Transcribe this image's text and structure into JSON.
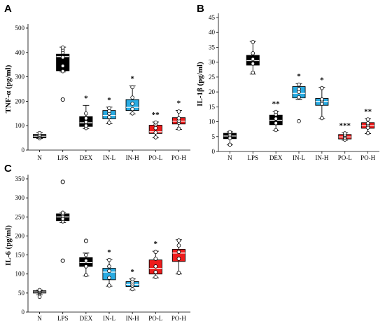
{
  "colors": {
    "dark": "#000000",
    "blue": "#29abe2",
    "red": "#ee1c1c",
    "white": "#ffffff"
  },
  "chart_data": [
    {
      "panel": "A",
      "type": "box",
      "ylabel": "TNF-α (pg/ml)",
      "ylim": [
        0,
        500
      ],
      "yticks": [
        0,
        100,
        200,
        300,
        400,
        500
      ],
      "categories": [
        "N",
        "LPS",
        "DEX",
        "IN-L",
        "IN-H",
        "PO-L",
        "PO-H"
      ],
      "box_colors": [
        "dark",
        "dark",
        "dark",
        "blue",
        "blue",
        "red",
        "red"
      ],
      "boxes": [
        {
          "q1": 50,
          "median": 57,
          "q3": 64,
          "wlo": 47,
          "whi": 72,
          "points": [
            48,
            55,
            58,
            63,
            70
          ],
          "outliers": [],
          "sig": ""
        },
        {
          "q1": 325,
          "median": 383,
          "q3": 393,
          "wlo": 320,
          "whi": 422,
          "points": [
            323,
            345,
            380,
            400,
            410,
            420
          ],
          "outliers": [
            207
          ],
          "sig": ""
        },
        {
          "q1": 97,
          "median": 112,
          "q3": 137,
          "wlo": 88,
          "whi": 183,
          "points": [
            90,
            100,
            115,
            130,
            150
          ],
          "outliers": [],
          "sig": "*"
        },
        {
          "q1": 128,
          "median": 142,
          "q3": 162,
          "wlo": 108,
          "whi": 176,
          "points": [
            112,
            135,
            150,
            160,
            172
          ],
          "outliers": [],
          "sig": "*"
        },
        {
          "q1": 162,
          "median": 175,
          "q3": 207,
          "wlo": 148,
          "whi": 263,
          "points": [
            150,
            168,
            190,
            215,
            258
          ],
          "outliers": [],
          "sig": "*"
        },
        {
          "q1": 68,
          "median": 75,
          "q3": 102,
          "wlo": 50,
          "whi": 115,
          "points": [
            52,
            72,
            90,
            105,
            113
          ],
          "outliers": [],
          "sig": "**"
        },
        {
          "q1": 107,
          "median": 118,
          "q3": 133,
          "wlo": 85,
          "whi": 162,
          "points": [
            88,
            112,
            120,
            130,
            158
          ],
          "outliers": [],
          "sig": "*"
        }
      ]
    },
    {
      "panel": "B",
      "type": "box",
      "ylabel": "IL-1β (pg/ml)",
      "ylim": [
        0,
        45
      ],
      "yticks": [
        0,
        5,
        10,
        15,
        20,
        25,
        30,
        35,
        40,
        45
      ],
      "categories": [
        "N",
        "LPS",
        "DEX",
        "IN-L",
        "IN-H",
        "PO-L",
        "PO-H"
      ],
      "box_colors": [
        "dark",
        "dark",
        "dark",
        "blue",
        "blue",
        "red",
        "red"
      ],
      "boxes": [
        {
          "q1": 4.3,
          "median": 5.2,
          "q3": 6.1,
          "wlo": 2.2,
          "whi": 6.6,
          "points": [
            2.3,
            4.5,
            5.5,
            6.0,
            6.5
          ],
          "outliers": [],
          "sig": ""
        },
        {
          "q1": 29.0,
          "median": 30.5,
          "q3": 32.3,
          "wlo": 26.0,
          "whi": 37.0,
          "points": [
            26.5,
            29.5,
            31.0,
            33.0,
            36.8
          ],
          "outliers": [],
          "sig": ""
        },
        {
          "q1": 9.0,
          "median": 10.5,
          "q3": 12.2,
          "wlo": 7.0,
          "whi": 13.5,
          "points": [
            7.2,
            9.5,
            11.0,
            12.5,
            13.3
          ],
          "outliers": [],
          "sig": "**"
        },
        {
          "q1": 18.0,
          "median": 19.5,
          "q3": 21.8,
          "wlo": 17.5,
          "whi": 22.8,
          "points": [
            10.2,
            18.2,
            20.0,
            21.0,
            22.5
          ],
          "outliers": [],
          "sig": "*"
        },
        {
          "q1": 15.5,
          "median": 16.8,
          "q3": 17.8,
          "wlo": 11.0,
          "whi": 21.5,
          "points": [
            11.2,
            16.0,
            17.0,
            17.5,
            21.3
          ],
          "outliers": [],
          "sig": "*"
        },
        {
          "q1": 4.2,
          "median": 4.9,
          "q3": 5.7,
          "wlo": 3.8,
          "whi": 6.3,
          "points": [
            4.0,
            4.7,
            5.2,
            5.6,
            6.1
          ],
          "outliers": [],
          "sig": "***"
        },
        {
          "q1": 7.8,
          "median": 8.7,
          "q3": 9.7,
          "wlo": 6.0,
          "whi": 11.0,
          "points": [
            6.2,
            8.0,
            9.0,
            9.5,
            10.8
          ],
          "outliers": [],
          "sig": "**"
        }
      ]
    },
    {
      "panel": "C",
      "type": "box",
      "ylabel": "IL-6 (pg/ml)",
      "ylim": [
        0,
        350
      ],
      "yticks": [
        0,
        50,
        100,
        150,
        200,
        250,
        300,
        350
      ],
      "categories": [
        "N",
        "LPS",
        "DEX",
        "IN-L",
        "IN-H",
        "PO-L",
        "PO-H"
      ],
      "box_colors": [
        "dark",
        "dark",
        "dark",
        "blue",
        "blue",
        "red",
        "red"
      ],
      "boxes": [
        {
          "q1": 50,
          "median": 53,
          "q3": 56,
          "wlo": 45,
          "whi": 58,
          "points": [
            40,
            50,
            53,
            55,
            58
          ],
          "outliers": [],
          "sig": ""
        },
        {
          "q1": 240,
          "median": 250,
          "q3": 258,
          "wlo": 235,
          "whi": 262,
          "points": [
            238,
            245,
            252,
            257,
            261
          ],
          "outliers": [
            135,
            342
          ],
          "sig": ""
        },
        {
          "q1": 120,
          "median": 130,
          "q3": 143,
          "wlo": 95,
          "whi": 155,
          "points": [
            97,
            120,
            135,
            150
          ],
          "outliers": [
            187
          ],
          "sig": ""
        },
        {
          "q1": 85,
          "median": 105,
          "q3": 115,
          "wlo": 68,
          "whi": 138,
          "points": [
            70,
            90,
            108,
            120,
            137
          ],
          "outliers": [],
          "sig": "*"
        },
        {
          "q1": 67,
          "median": 73,
          "q3": 80,
          "wlo": 58,
          "whi": 87,
          "points": [
            60,
            70,
            75,
            80,
            86
          ],
          "outliers": [],
          "sig": "*"
        },
        {
          "q1": 100,
          "median": 115,
          "q3": 137,
          "wlo": 90,
          "whi": 160,
          "points": [
            92,
            105,
            120,
            140,
            158
          ],
          "outliers": [],
          "sig": "*"
        },
        {
          "q1": 133,
          "median": 155,
          "q3": 165,
          "wlo": 100,
          "whi": 190,
          "points": [
            103,
            140,
            158,
            175,
            188
          ],
          "outliers": [],
          "sig": ""
        }
      ]
    }
  ]
}
